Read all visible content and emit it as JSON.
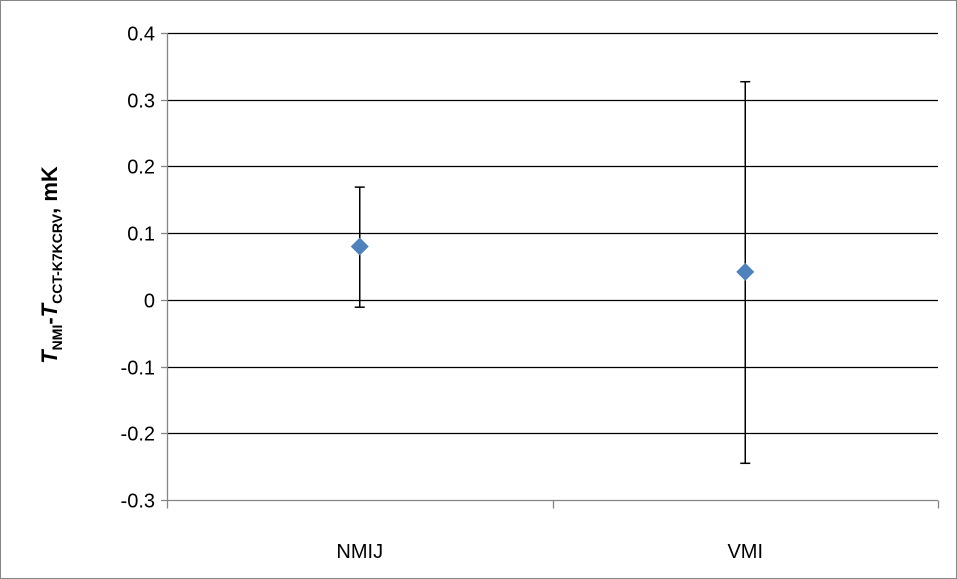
{
  "chart_data": {
    "type": "scatter",
    "title": "",
    "xlabel": "",
    "ylabel": {
      "main1": "T",
      "sub1": "NMI",
      "dash": "-",
      "main2": "T",
      "sub2": "CCT-K7KCRV",
      "unit": ", mK"
    },
    "categories": [
      "NMIJ",
      "VMI"
    ],
    "series": [
      {
        "values": [
          0.08,
          0.042
        ],
        "error_upper": [
          0.169,
          0.327
        ],
        "error_lower": [
          -0.011,
          -0.245
        ],
        "color": "#4F81BD"
      }
    ],
    "ylim": [
      -0.3,
      0.4
    ],
    "yticks": [
      -0.3,
      -0.2,
      -0.1,
      0,
      0.1,
      0.2,
      0.3,
      0.4
    ],
    "ytick_labels": [
      "-0.3",
      "-0.2",
      "-0.1",
      "0",
      "0.1",
      "0.2",
      "0.3",
      "0.4"
    ],
    "grid": true,
    "legend": "none"
  },
  "colors": {
    "marker": "#4F81BD",
    "grid": "#000000",
    "axis": "#868686",
    "frame": "#868686"
  }
}
